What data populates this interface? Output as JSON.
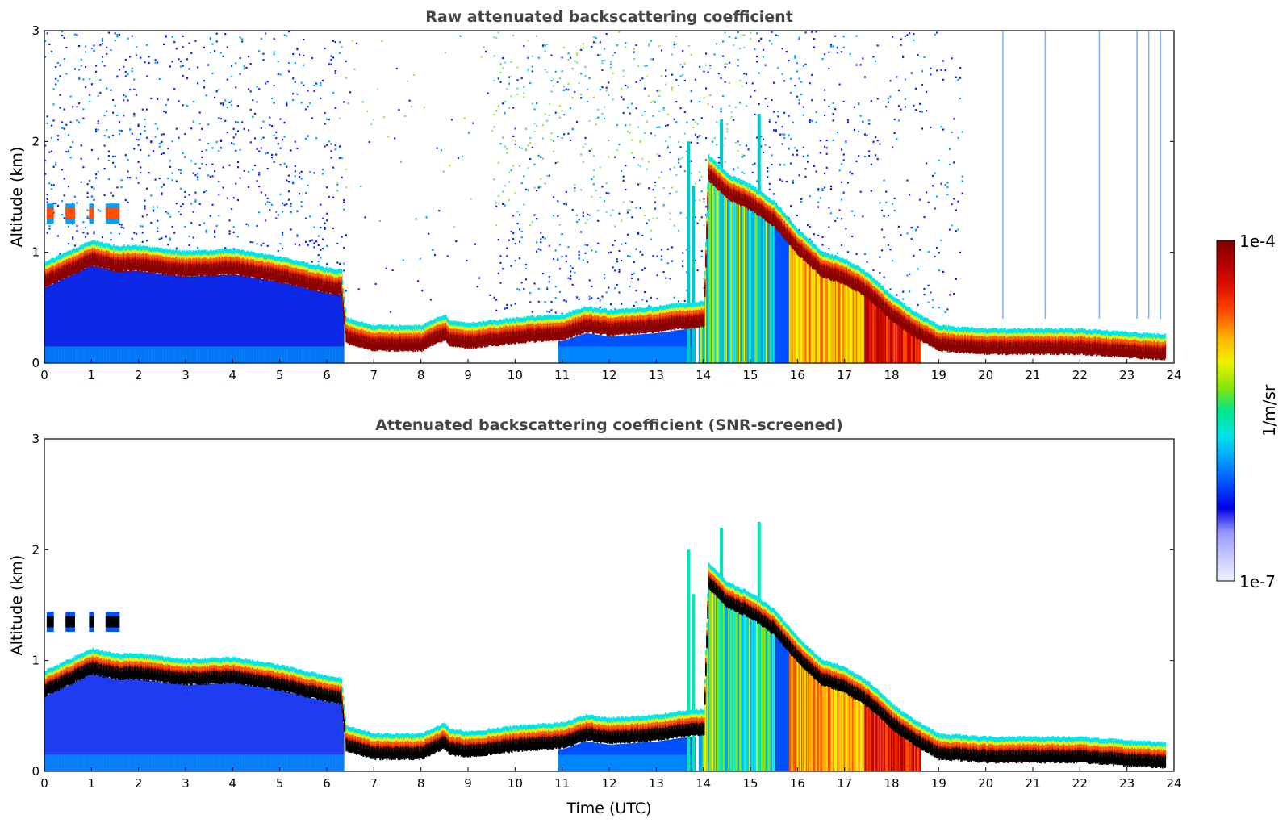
{
  "chart_data": [
    {
      "type": "heatmap",
      "title": "Raw attenuated backscattering coefficient",
      "xlabel": "",
      "ylabel": "Altitude (km)",
      "xlim": [
        0,
        24
      ],
      "ylim": [
        0,
        3
      ],
      "x_ticks": [
        "0",
        "1",
        "2",
        "3",
        "4",
        "5",
        "6",
        "7",
        "8",
        "9",
        "10",
        "11",
        "12",
        "13",
        "14",
        "15",
        "16",
        "17",
        "18",
        "19",
        "20",
        "21",
        "22",
        "23",
        "24"
      ],
      "y_ticks": [
        "0",
        "1",
        "2",
        "3"
      ],
      "grid": false,
      "layers": [
        {
          "kind": "cloud_base",
          "x": [
            0,
            0.5,
            1.0,
            1.5,
            2.0,
            3.0,
            4.0,
            5.0,
            6.0,
            6.3,
            6.4,
            7.0,
            8.0,
            8.5,
            8.6,
            9.0,
            10.0,
            11.0,
            11.5,
            12.0,
            13.0,
            13.5,
            14.0,
            14.1,
            14.5,
            15.0,
            15.5,
            16.0,
            16.5,
            17.0,
            17.5,
            18.0,
            18.5,
            19.0,
            20.0,
            21.0,
            22.0,
            23.0,
            23.8
          ],
          "y": [
            0.75,
            0.85,
            0.95,
            0.9,
            0.9,
            0.85,
            0.87,
            0.8,
            0.7,
            0.68,
            0.25,
            0.18,
            0.18,
            0.28,
            0.22,
            0.2,
            0.25,
            0.28,
            0.35,
            0.32,
            0.35,
            0.38,
            0.4,
            1.72,
            1.55,
            1.45,
            1.3,
            1.05,
            0.85,
            0.78,
            0.65,
            0.45,
            0.3,
            0.18,
            0.15,
            0.15,
            0.15,
            0.12,
            0.1
          ]
        },
        {
          "kind": "elevated_layer",
          "x": [
            0,
            1.6
          ],
          "y": [
            1.35,
            1.35
          ]
        }
      ],
      "colorbar": {
        "min_label": "1e-7",
        "max_label": "1e-4",
        "unit": "1/m/sr",
        "scale": "log"
      }
    },
    {
      "type": "heatmap",
      "title": "Attenuated backscattering coefficient (SNR-screened)",
      "xlabel": "Time (UTC)",
      "ylabel": "Altitude (km)",
      "xlim": [
        0,
        24
      ],
      "ylim": [
        0,
        3
      ],
      "x_ticks": [
        "0",
        "1",
        "2",
        "3",
        "4",
        "5",
        "6",
        "7",
        "8",
        "9",
        "10",
        "11",
        "12",
        "13",
        "14",
        "15",
        "16",
        "17",
        "18",
        "19",
        "20",
        "21",
        "22",
        "23",
        "24"
      ],
      "y_ticks": [
        "0",
        "1",
        "2",
        "3"
      ],
      "grid": false,
      "layers": [
        {
          "kind": "cloud_base",
          "x": [
            0,
            0.5,
            1.0,
            1.5,
            2.0,
            3.0,
            4.0,
            5.0,
            6.0,
            6.3,
            6.4,
            7.0,
            8.0,
            8.5,
            8.6,
            9.0,
            10.0,
            11.0,
            11.5,
            12.0,
            13.0,
            13.5,
            14.0,
            14.1,
            14.5,
            15.0,
            15.5,
            16.0,
            16.5,
            17.0,
            17.5,
            18.0,
            18.5,
            19.0,
            20.0,
            21.0,
            22.0,
            23.0,
            23.8
          ],
          "y": [
            0.75,
            0.85,
            0.95,
            0.9,
            0.9,
            0.85,
            0.87,
            0.8,
            0.7,
            0.68,
            0.25,
            0.18,
            0.18,
            0.28,
            0.22,
            0.2,
            0.25,
            0.28,
            0.35,
            0.32,
            0.35,
            0.38,
            0.4,
            1.72,
            1.55,
            1.45,
            1.3,
            1.05,
            0.85,
            0.78,
            0.65,
            0.45,
            0.3,
            0.18,
            0.15,
            0.15,
            0.15,
            0.12,
            0.1
          ]
        },
        {
          "kind": "elevated_layer",
          "x": [
            0,
            1.6
          ],
          "y": [
            1.35,
            1.35
          ]
        }
      ],
      "colorbar": {
        "min_label": "1e-7",
        "max_label": "1e-4",
        "unit": "1/m/sr",
        "scale": "log"
      }
    }
  ],
  "colors": {
    "colormap": [
      "#f0f0ff",
      "#c8c8ff",
      "#9696ff",
      "#0000e6",
      "#0050ff",
      "#00a0ff",
      "#00e6e6",
      "#00e68c",
      "#8ce600",
      "#f0f000",
      "#ffb400",
      "#ff5000",
      "#e61400",
      "#b40000",
      "#800000"
    ],
    "sparse_noise": "#0a28e6",
    "upper_noise": "#64d2c8",
    "cloud_core": "#8b0000",
    "cloud_core_screened": "#000000"
  }
}
